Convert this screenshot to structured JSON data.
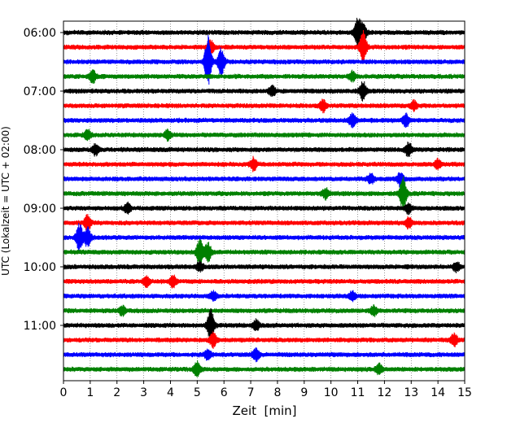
{
  "chart_data": {
    "type": "line",
    "title": "",
    "xlabel": "Zeit  [min]",
    "ylabel": "UTC (Lokalzeit = UTC + 02:00)",
    "xlim": [
      0,
      15
    ],
    "x_ticks": [
      "0",
      "1",
      "2",
      "3",
      "4",
      "5",
      "6",
      "7",
      "8",
      "9",
      "10",
      "11",
      "12",
      "13",
      "14",
      "15"
    ],
    "y_ticks": [
      "06:00",
      "07:00",
      "08:00",
      "09:00",
      "10:00",
      "11:00"
    ],
    "trace_minutes": 15,
    "grid": "vertical dotted",
    "start_time": "06:00",
    "end_time": "11:45",
    "trace_colors": [
      "#000000",
      "#ff0000",
      "#0000ff",
      "#008000"
    ],
    "traces": [
      {
        "time": "06:00",
        "color": "#000000",
        "events": [
          {
            "t": 11.0,
            "amp": 3.0
          },
          {
            "t": 11.2,
            "amp": 2.0
          }
        ]
      },
      {
        "time": "06:15",
        "color": "#ff0000",
        "events": [
          {
            "t": 5.5,
            "amp": 1.5
          },
          {
            "t": 11.2,
            "amp": 3.5
          }
        ]
      },
      {
        "time": "06:30",
        "color": "#0000ff",
        "events": [
          {
            "t": 5.4,
            "amp": 5.5
          },
          {
            "t": 5.9,
            "amp": 3.0
          }
        ]
      },
      {
        "time": "06:45",
        "color": "#008000",
        "events": [
          {
            "t": 1.1,
            "amp": 1.2
          },
          {
            "t": 10.8,
            "amp": 1.0
          }
        ]
      },
      {
        "time": "07:00",
        "color": "#000000",
        "events": [
          {
            "t": 7.8,
            "amp": 1.0
          },
          {
            "t": 11.2,
            "amp": 2.0
          }
        ]
      },
      {
        "time": "07:15",
        "color": "#ff0000",
        "events": [
          {
            "t": 9.7,
            "amp": 1.2
          },
          {
            "t": 13.1,
            "amp": 1.0
          }
        ]
      },
      {
        "time": "07:30",
        "color": "#0000ff",
        "events": [
          {
            "t": 10.8,
            "amp": 1.3
          },
          {
            "t": 12.8,
            "amp": 1.3
          }
        ]
      },
      {
        "time": "07:45",
        "color": "#008000",
        "events": [
          {
            "t": 0.9,
            "amp": 1.0
          },
          {
            "t": 3.9,
            "amp": 1.0
          }
        ]
      },
      {
        "time": "08:00",
        "color": "#000000",
        "events": [
          {
            "t": 1.2,
            "amp": 1.2
          },
          {
            "t": 12.9,
            "amp": 1.5
          }
        ]
      },
      {
        "time": "08:15",
        "color": "#ff0000",
        "events": [
          {
            "t": 7.1,
            "amp": 1.3
          },
          {
            "t": 14.0,
            "amp": 1.0
          }
        ]
      },
      {
        "time": "08:30",
        "color": "#0000ff",
        "events": [
          {
            "t": 11.5,
            "amp": 1.0
          },
          {
            "t": 12.6,
            "amp": 1.5
          }
        ]
      },
      {
        "time": "08:45",
        "color": "#008000",
        "events": [
          {
            "t": 12.7,
            "amp": 3.5
          },
          {
            "t": 9.8,
            "amp": 1.0
          }
        ]
      },
      {
        "time": "09:00",
        "color": "#000000",
        "events": [
          {
            "t": 2.4,
            "amp": 1.0
          },
          {
            "t": 12.9,
            "amp": 1.0
          }
        ]
      },
      {
        "time": "09:15",
        "color": "#ff0000",
        "events": [
          {
            "t": 0.9,
            "amp": 1.5
          },
          {
            "t": 12.9,
            "amp": 1.0
          }
        ]
      },
      {
        "time": "09:30",
        "color": "#0000ff",
        "events": [
          {
            "t": 0.6,
            "amp": 3.0
          },
          {
            "t": 0.9,
            "amp": 2.0
          }
        ]
      },
      {
        "time": "09:45",
        "color": "#008000",
        "events": [
          {
            "t": 5.1,
            "amp": 3.0
          },
          {
            "t": 5.4,
            "amp": 2.0
          }
        ]
      },
      {
        "time": "10:00",
        "color": "#000000",
        "events": [
          {
            "t": 5.1,
            "amp": 1.0
          },
          {
            "t": 14.7,
            "amp": 1.0
          }
        ]
      },
      {
        "time": "10:15",
        "color": "#ff0000",
        "events": [
          {
            "t": 4.1,
            "amp": 1.3
          },
          {
            "t": 3.1,
            "amp": 1.0
          }
        ]
      },
      {
        "time": "10:30",
        "color": "#0000ff",
        "events": [
          {
            "t": 5.6,
            "amp": 1.0
          },
          {
            "t": 10.8,
            "amp": 1.0
          }
        ]
      },
      {
        "time": "10:45",
        "color": "#008000",
        "events": [
          {
            "t": 2.2,
            "amp": 1.0
          },
          {
            "t": 11.6,
            "amp": 1.0
          }
        ]
      },
      {
        "time": "11:00",
        "color": "#000000",
        "events": [
          {
            "t": 5.5,
            "amp": 3.5
          },
          {
            "t": 7.2,
            "amp": 1.2
          }
        ]
      },
      {
        "time": "11:15",
        "color": "#ff0000",
        "events": [
          {
            "t": 5.6,
            "amp": 1.5
          },
          {
            "t": 14.6,
            "amp": 1.3
          }
        ]
      },
      {
        "time": "11:30",
        "color": "#0000ff",
        "events": [
          {
            "t": 7.2,
            "amp": 1.2
          },
          {
            "t": 5.4,
            "amp": 1.0
          }
        ]
      },
      {
        "time": "11:45",
        "color": "#008000",
        "events": [
          {
            "t": 5.0,
            "amp": 1.5
          },
          {
            "t": 11.8,
            "amp": 1.0
          }
        ]
      }
    ]
  }
}
